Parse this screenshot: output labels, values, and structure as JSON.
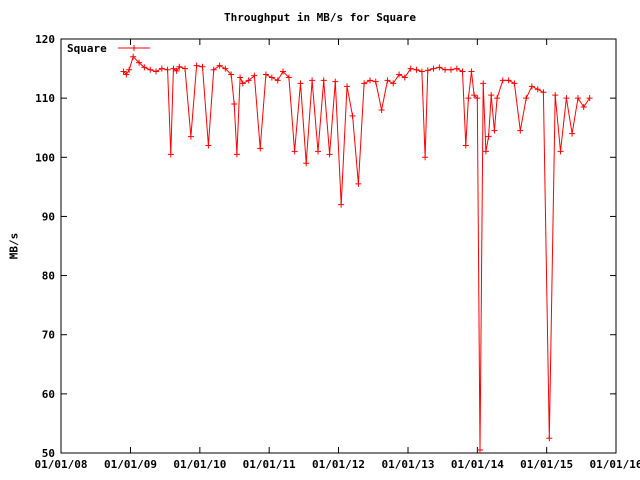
{
  "chart_data": {
    "type": "line",
    "title": "Throughput in MB/s for Square",
    "xlabel": "",
    "ylabel": "MB/s",
    "xlim": [
      "2008-01-01",
      "2016-01-01"
    ],
    "ylim": [
      50,
      120
    ],
    "x_ticks": [
      "01/01/08",
      "01/01/09",
      "01/01/10",
      "01/01/11",
      "01/01/12",
      "01/01/13",
      "01/01/14",
      "01/01/15",
      "01/01/16"
    ],
    "y_ticks": [
      "50",
      "60",
      "70",
      "80",
      "90",
      "100",
      "110",
      "120"
    ],
    "grid": false,
    "legend_position": "top-left",
    "color": "#ff0000",
    "series": [
      {
        "name": "Square",
        "x": [
          "2008-11-25",
          "2008-12-10",
          "2008-12-25",
          "2009-01-15",
          "2009-02-15",
          "2009-03-15",
          "2009-04-15",
          "2009-05-15",
          "2009-06-15",
          "2009-07-15",
          "2009-08-01",
          "2009-08-15",
          "2009-09-01",
          "2009-09-15",
          "2009-10-15",
          "2009-11-15",
          "2009-12-15",
          "2010-01-15",
          "2010-02-15",
          "2010-03-15",
          "2010-04-15",
          "2010-05-15",
          "2010-06-15",
          "2010-07-01",
          "2010-07-15",
          "2010-08-01",
          "2010-08-15",
          "2010-09-15",
          "2010-10-15",
          "2010-11-15",
          "2010-12-15",
          "2011-01-15",
          "2011-02-15",
          "2011-03-15",
          "2011-04-15",
          "2011-05-15",
          "2011-06-15",
          "2011-07-15",
          "2011-08-15",
          "2011-09-15",
          "2011-10-15",
          "2011-11-15",
          "2011-12-15",
          "2012-01-15",
          "2012-02-15",
          "2012-03-15",
          "2012-04-15",
          "2012-05-15",
          "2012-06-15",
          "2012-07-15",
          "2012-08-15",
          "2012-09-15",
          "2012-10-15",
          "2012-11-15",
          "2012-12-15",
          "2013-01-15",
          "2013-02-15",
          "2013-03-15",
          "2013-04-01",
          "2013-04-15",
          "2013-05-15",
          "2013-06-15",
          "2013-07-15",
          "2013-08-15",
          "2013-09-15",
          "2013-10-15",
          "2013-11-01",
          "2013-11-15",
          "2013-12-01",
          "2013-12-15",
          "2014-01-01",
          "2014-01-15",
          "2014-02-01",
          "2014-02-15",
          "2014-03-01",
          "2014-03-15",
          "2014-04-01",
          "2014-04-15",
          "2014-05-15",
          "2014-06-15",
          "2014-07-15",
          "2014-08-15",
          "2014-09-15",
          "2014-10-15",
          "2014-11-15",
          "2014-12-15",
          "2015-01-15",
          "2015-02-15",
          "2015-03-15",
          "2015-04-15",
          "2015-05-15",
          "2015-06-15",
          "2015-07-15",
          "2015-08-15"
        ],
        "y": [
          114.5,
          114.0,
          114.8,
          117.0,
          116.0,
          115.2,
          114.8,
          114.5,
          115.0,
          114.8,
          100.5,
          115.0,
          114.6,
          115.3,
          115.0,
          103.5,
          115.5,
          115.3,
          102.0,
          114.8,
          115.5,
          115.0,
          114.0,
          109.0,
          100.5,
          113.5,
          112.5,
          113.0,
          113.8,
          101.5,
          114.0,
          113.5,
          113.0,
          114.5,
          113.5,
          101.0,
          112.5,
          99.0,
          113.0,
          101.0,
          113.0,
          100.5,
          112.8,
          92.0,
          112.0,
          107.0,
          95.5,
          112.5,
          113.0,
          112.8,
          108.0,
          113.0,
          112.5,
          114.0,
          113.5,
          115.0,
          114.8,
          114.5,
          100.0,
          114.7,
          115.0,
          115.2,
          114.8,
          114.8,
          115.0,
          114.5,
          102.0,
          110.0,
          114.5,
          110.5,
          110.0,
          50.5,
          112.5,
          101.0,
          103.5,
          110.5,
          104.5,
          110.0,
          113.0,
          113.0,
          112.5,
          104.5,
          110.0,
          112.0,
          111.5,
          111.0,
          52.5,
          110.5,
          101.0,
          110.0,
          104.0,
          110.0,
          108.5,
          110.0
        ]
      }
    ]
  }
}
